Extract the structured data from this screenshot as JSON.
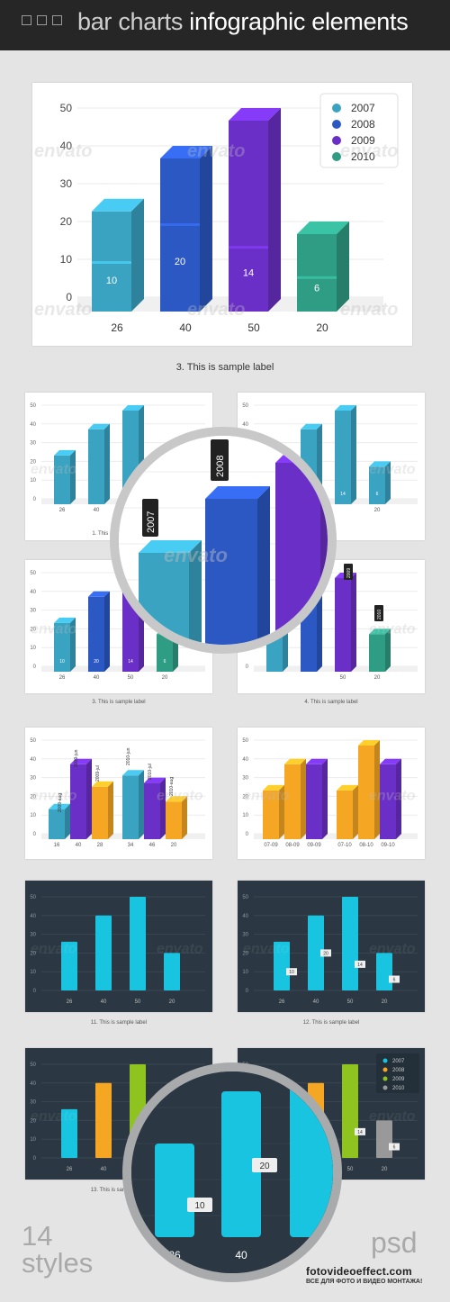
{
  "header": {
    "title_light": "bar charts",
    "title_bold": "infographic elements"
  },
  "main_chart": {
    "label": "3. This is sample label",
    "legend": [
      "2007",
      "2008",
      "2009",
      "2010"
    ],
    "legend_colors": [
      "#3aa3c2",
      "#2c58c4",
      "#6a2fc6",
      "#2f9c84"
    ],
    "yticks": [
      "50",
      "40",
      "30",
      "20",
      "10",
      "0"
    ],
    "categories": [
      "26",
      "40",
      "50",
      "20"
    ],
    "inner_labels": [
      "10",
      "20",
      "14",
      "6"
    ]
  },
  "chart_data": {
    "type": "bar",
    "categories": [
      "26",
      "40",
      "50",
      "20"
    ],
    "values": [
      26,
      40,
      50,
      20
    ],
    "inner_values": [
      10,
      20,
      14,
      6
    ],
    "series_legend": [
      "2007",
      "2008",
      "2009",
      "2010"
    ],
    "ylim": [
      0,
      50
    ],
    "title": "3. This is sample label"
  },
  "small": {
    "label_1": "1. This is sample label",
    "label_3": "3. This is sample label",
    "label_4": "4. This is sample label",
    "label_11": "11. This is sample label",
    "label_12": "12. This is sample label",
    "label_13": "13. This is sample label",
    "tooltip_2007": "2007",
    "tooltip_2008": "2008",
    "tooltip_2009": "2009",
    "tooltip_2010": "2010",
    "months_a": [
      "2009-jun",
      "2009-jul",
      "2009-aug",
      "2010-jun",
      "2010-jul",
      "2010-aug"
    ],
    "cats_a": [
      "16",
      "40",
      "28",
      "34",
      "46",
      "20"
    ],
    "cats_b": [
      "07-09",
      "08-09",
      "09-09",
      "07-10",
      "08-10",
      "09-10"
    ],
    "vals_b": [
      "10",
      "20",
      "30",
      "10",
      "20",
      "30"
    ]
  },
  "lens_bottom": {
    "cats": [
      "26",
      "40"
    ],
    "tags": [
      "10",
      "20"
    ]
  },
  "footer": {
    "count": "14",
    "styles": "styles",
    "format": "psd",
    "site": "fotovideoeffect.com",
    "site_sub": "ВСЕ ДЛЯ ФОТО И ВИДЕО МОНТАЖА!"
  },
  "watermark": "envato"
}
